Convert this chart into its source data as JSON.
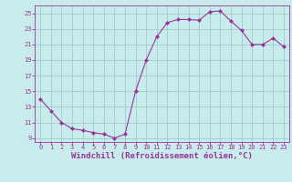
{
  "x": [
    0,
    1,
    2,
    3,
    4,
    5,
    6,
    7,
    8,
    9,
    10,
    11,
    12,
    13,
    14,
    15,
    16,
    17,
    18,
    19,
    20,
    21,
    22,
    23
  ],
  "y": [
    14.0,
    12.5,
    11.0,
    10.2,
    10.0,
    9.7,
    9.5,
    9.0,
    9.5,
    15.0,
    19.0,
    22.0,
    23.8,
    24.2,
    24.2,
    24.1,
    25.2,
    25.3,
    24.0,
    22.8,
    21.0,
    21.0,
    21.8,
    20.7
  ],
  "line_color": "#993399",
  "marker": "D",
  "marker_size": 2,
  "bg_color": "#c8ecec",
  "grid_color": "#a0cccc",
  "xlabel": "Windchill (Refroidissement éolien,°C)",
  "ylabel": "",
  "xlim": [
    -0.5,
    23.5
  ],
  "ylim": [
    8.5,
    26.0
  ],
  "yticks": [
    9,
    11,
    13,
    15,
    17,
    19,
    21,
    23,
    25
  ],
  "xticks": [
    0,
    1,
    2,
    3,
    4,
    5,
    6,
    7,
    8,
    9,
    10,
    11,
    12,
    13,
    14,
    15,
    16,
    17,
    18,
    19,
    20,
    21,
    22,
    23
  ],
  "tick_color": "#993399",
  "tick_fontsize": 5.0,
  "xlabel_fontsize": 6.5,
  "font_family": "monospace"
}
